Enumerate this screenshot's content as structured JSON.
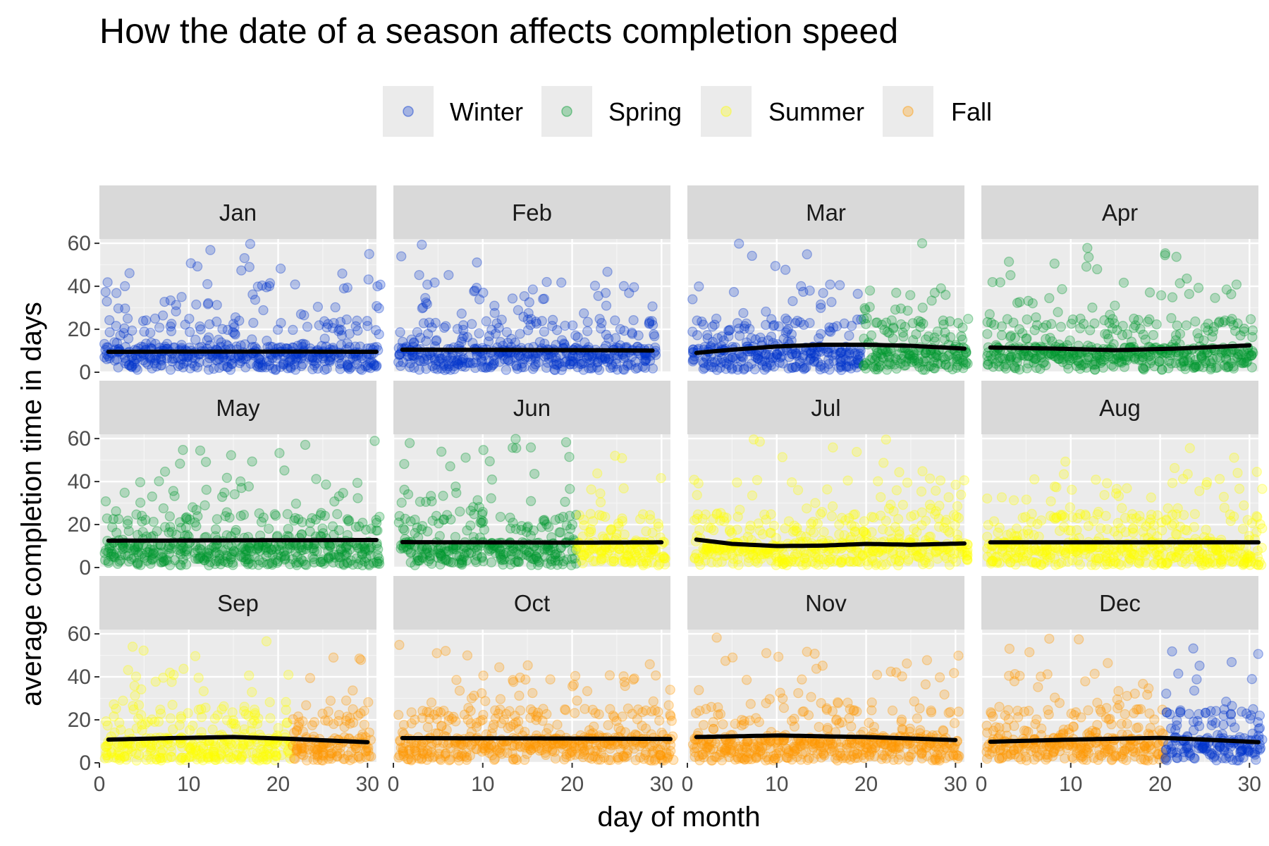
{
  "chart_data": {
    "type": "scatter",
    "title": "How the date of a season affects completion speed",
    "xlabel": "day of month",
    "ylabel": "average completion time in days",
    "xlim": [
      0,
      31
    ],
    "ylim": [
      0,
      62
    ],
    "x_ticks": [
      0,
      10,
      20,
      30
    ],
    "y_ticks": [
      0,
      20,
      40,
      60
    ],
    "facet_layout": "4 columns x 3 rows",
    "legend_position": "top",
    "grid": true,
    "seasons": [
      {
        "name": "Winter",
        "color": "#0033cc"
      },
      {
        "name": "Spring",
        "color": "#00992e"
      },
      {
        "name": "Summer",
        "color": "#ffff00"
      },
      {
        "name": "Fall",
        "color": "#ff9900"
      }
    ],
    "smooth_line_color": "#000000",
    "point_alpha": 0.25,
    "panels": [
      {
        "month": "Jan",
        "segments": [
          {
            "season": "Winter",
            "from": 1,
            "to": 31
          }
        ],
        "trend": [
          [
            1,
            9.5
          ],
          [
            10,
            9.6
          ],
          [
            20,
            9.6
          ],
          [
            31,
            9.5
          ]
        ]
      },
      {
        "month": "Feb",
        "segments": [
          {
            "season": "Winter",
            "from": 1,
            "to": 29
          }
        ],
        "trend": [
          [
            1,
            10.5
          ],
          [
            10,
            10.4
          ],
          [
            20,
            10.3
          ],
          [
            29,
            10.1
          ]
        ]
      },
      {
        "month": "Mar",
        "segments": [
          {
            "season": "Winter",
            "from": 1,
            "to": 19
          },
          {
            "season": "Spring",
            "from": 20,
            "to": 31
          }
        ],
        "trend": [
          [
            1,
            9
          ],
          [
            5,
            10.5
          ],
          [
            10,
            12
          ],
          [
            15,
            12.8
          ],
          [
            20,
            12.8
          ],
          [
            25,
            12.3
          ],
          [
            31,
            11
          ]
        ]
      },
      {
        "month": "Apr",
        "segments": [
          {
            "season": "Spring",
            "from": 1,
            "to": 30
          }
        ],
        "trend": [
          [
            1,
            11.5
          ],
          [
            8,
            11
          ],
          [
            15,
            10.3
          ],
          [
            22,
            11
          ],
          [
            30,
            12.5
          ]
        ]
      },
      {
        "month": "May",
        "segments": [
          {
            "season": "Spring",
            "from": 1,
            "to": 31
          }
        ],
        "trend": [
          [
            1,
            12.5
          ],
          [
            10,
            12.6
          ],
          [
            20,
            12.7
          ],
          [
            31,
            12.8
          ]
        ]
      },
      {
        "month": "Jun",
        "segments": [
          {
            "season": "Spring",
            "from": 1,
            "to": 20
          },
          {
            "season": "Summer",
            "from": 21,
            "to": 30
          }
        ],
        "trend": [
          [
            1,
            11.8
          ],
          [
            10,
            11.7
          ],
          [
            20,
            11.6
          ],
          [
            30,
            11.7
          ]
        ]
      },
      {
        "month": "Jul",
        "segments": [
          {
            "season": "Summer",
            "from": 1,
            "to": 31
          }
        ],
        "trend": [
          [
            1,
            13
          ],
          [
            5,
            11
          ],
          [
            10,
            10
          ],
          [
            15,
            10.2
          ],
          [
            20,
            11
          ],
          [
            25,
            10.6
          ],
          [
            31,
            11.2
          ]
        ]
      },
      {
        "month": "Aug",
        "segments": [
          {
            "season": "Summer",
            "from": 1,
            "to": 31
          }
        ],
        "trend": [
          [
            1,
            11.7
          ],
          [
            10,
            11.7
          ],
          [
            20,
            11.7
          ],
          [
            31,
            11.7
          ]
        ]
      },
      {
        "month": "Sep",
        "segments": [
          {
            "season": "Summer",
            "from": 1,
            "to": 21
          },
          {
            "season": "Fall",
            "from": 22,
            "to": 30
          }
        ],
        "trend": [
          [
            1,
            10.8
          ],
          [
            8,
            11.5
          ],
          [
            15,
            12
          ],
          [
            21,
            11.2
          ],
          [
            30,
            9.6
          ]
        ]
      },
      {
        "month": "Oct",
        "segments": [
          {
            "season": "Fall",
            "from": 1,
            "to": 31
          }
        ],
        "trend": [
          [
            1,
            11.5
          ],
          [
            10,
            11.4
          ],
          [
            20,
            11.3
          ],
          [
            31,
            11.1
          ]
        ]
      },
      {
        "month": "Nov",
        "segments": [
          {
            "season": "Fall",
            "from": 1,
            "to": 30
          }
        ],
        "trend": [
          [
            1,
            12
          ],
          [
            10,
            12.7
          ],
          [
            20,
            12
          ],
          [
            30,
            10.6
          ]
        ]
      },
      {
        "month": "Dec",
        "segments": [
          {
            "season": "Fall",
            "from": 1,
            "to": 20
          },
          {
            "season": "Winter",
            "from": 21,
            "to": 31
          }
        ],
        "trend": [
          [
            1,
            9.8
          ],
          [
            10,
            10.8
          ],
          [
            20,
            11.6
          ],
          [
            25,
            10.8
          ],
          [
            31,
            9.6
          ]
        ]
      }
    ]
  }
}
